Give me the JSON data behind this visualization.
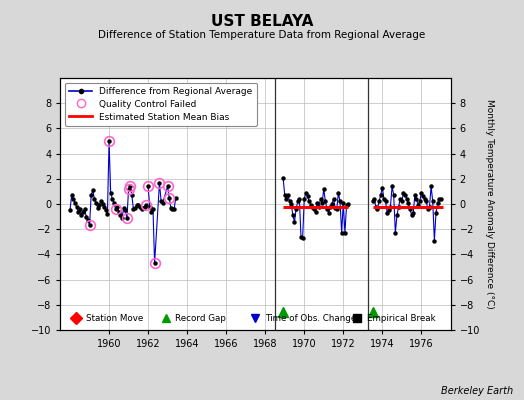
{
  "title": "UST BELAYA",
  "subtitle": "Difference of Station Temperature Data from Regional Average",
  "ylabel": "Monthly Temperature Anomaly Difference (°C)",
  "xlabel_credit": "Berkeley Earth",
  "ylim": [
    -10,
    10
  ],
  "xlim": [
    1957.5,
    1977.5
  ],
  "yticks": [
    -10,
    -8,
    -6,
    -4,
    -2,
    0,
    2,
    4,
    6,
    8
  ],
  "xticks": [
    1960,
    1962,
    1964,
    1966,
    1968,
    1970,
    1972,
    1974,
    1976
  ],
  "bg_color": "#d8d8d8",
  "plot_bg_color": "#ffffff",
  "grid_color": "#bbbbbb",
  "segments": [
    {
      "x_values": [
        1958.0,
        1958.083,
        1958.167,
        1958.25,
        1958.333,
        1958.417,
        1958.5,
        1958.583,
        1958.667,
        1958.75,
        1958.833,
        1958.917,
        1959.0,
        1959.083,
        1959.167,
        1959.25,
        1959.333,
        1959.417,
        1959.5,
        1959.583,
        1959.667,
        1959.75,
        1959.833,
        1959.917,
        1960.0,
        1960.083,
        1960.167,
        1960.25,
        1960.333,
        1960.417,
        1960.5,
        1960.583,
        1960.667,
        1960.75,
        1960.833,
        1960.917,
        1961.0,
        1961.083,
        1961.167,
        1961.25,
        1961.333,
        1961.417,
        1961.5,
        1961.583,
        1961.667,
        1961.75,
        1961.833,
        1961.917
      ],
      "y_values": [
        -0.5,
        0.7,
        0.4,
        0.1,
        -0.2,
        -0.6,
        -0.4,
        -0.9,
        -0.6,
        -0.4,
        -1.0,
        -1.3,
        -1.7,
        0.7,
        1.1,
        0.4,
        0.1,
        -0.3,
        -0.1,
        0.2,
        0.0,
        -0.2,
        -0.5,
        -0.8,
        5.0,
        0.9,
        0.4,
        0.1,
        -0.4,
        -0.2,
        -0.6,
        -0.9,
        -1.1,
        -0.3,
        -0.5,
        -1.1,
        1.2,
        1.4,
        0.7,
        -0.4,
        -0.3,
        -0.1,
        -0.1,
        -0.2,
        -0.4,
        -0.3,
        -0.2,
        -0.1
      ]
    },
    {
      "x_values": [
        1962.0,
        1962.083,
        1962.167,
        1962.25,
        1962.333,
        1962.583,
        1962.667,
        1962.75,
        1963.0,
        1963.083,
        1963.167,
        1963.25,
        1963.333,
        1963.417
      ],
      "y_values": [
        1.4,
        -0.2,
        -0.6,
        -0.4,
        -4.7,
        1.7,
        0.2,
        0.1,
        1.4,
        0.5,
        -0.3,
        -0.4,
        -0.4,
        0.5
      ]
    },
    {
      "x_values": [
        1968.917,
        1969.0,
        1969.083,
        1969.167,
        1969.25,
        1969.333,
        1969.417,
        1969.5,
        1969.583,
        1969.667,
        1969.75,
        1969.833,
        1969.917,
        1970.0,
        1970.083,
        1970.167,
        1970.25,
        1970.333,
        1970.417,
        1970.5,
        1970.583,
        1970.667,
        1970.75,
        1970.833,
        1970.917,
        1971.0,
        1971.083,
        1971.167,
        1971.25,
        1971.333,
        1971.417,
        1971.5,
        1971.583,
        1971.667,
        1971.75,
        1971.833,
        1971.917,
        1972.0,
        1972.083,
        1972.167,
        1972.25
      ],
      "y_values": [
        2.1,
        0.7,
        0.4,
        0.7,
        0.2,
        0.0,
        -0.9,
        -1.4,
        -0.4,
        0.2,
        0.4,
        -2.6,
        -2.7,
        0.4,
        0.9,
        0.6,
        0.2,
        -0.1,
        -0.2,
        -0.4,
        -0.6,
        0.1,
        -0.2,
        0.4,
        0.1,
        1.2,
        0.2,
        -0.4,
        -0.7,
        -0.2,
        0.0,
        0.4,
        -0.3,
        -0.4,
        0.9,
        0.2,
        -2.3,
        0.1,
        -2.3,
        -0.1,
        0.0
      ]
    },
    {
      "x_values": [
        1973.5,
        1973.583,
        1973.667,
        1973.75,
        1973.833,
        1973.917,
        1974.0,
        1974.083,
        1974.167,
        1974.25,
        1974.333,
        1974.417,
        1974.5,
        1974.583,
        1974.667,
        1974.75,
        1974.833,
        1974.917,
        1975.0,
        1975.083,
        1975.167,
        1975.25,
        1975.333,
        1975.417,
        1975.5,
        1975.583,
        1975.667,
        1975.75,
        1975.833,
        1975.917,
        1976.0,
        1976.083,
        1976.167,
        1976.25,
        1976.333,
        1976.417,
        1976.5,
        1976.583,
        1976.667,
        1976.75,
        1976.833,
        1976.917,
        1977.0
      ],
      "y_values": [
        0.2,
        0.4,
        -0.2,
        -0.4,
        0.2,
        0.7,
        1.3,
        0.4,
        0.2,
        -0.7,
        -0.5,
        -0.2,
        1.4,
        0.7,
        -2.3,
        -0.9,
        -0.2,
        0.4,
        0.2,
        0.9,
        0.7,
        0.4,
        0.1,
        -0.4,
        -0.9,
        -0.7,
        0.7,
        0.4,
        -0.1,
        0.2,
        0.9,
        0.6,
        0.4,
        0.2,
        -0.4,
        -0.2,
        1.4,
        0.2,
        -2.9,
        -0.7,
        0.1,
        0.4,
        0.4
      ]
    }
  ],
  "qc_failed": [
    [
      1960.0,
      5.0
    ],
    [
      1959.0,
      -1.7
    ],
    [
      1960.333,
      -0.4
    ],
    [
      1960.917,
      -1.1
    ],
    [
      1961.0,
      1.2
    ],
    [
      1961.083,
      1.4
    ],
    [
      1961.917,
      -0.1
    ],
    [
      1962.0,
      1.4
    ],
    [
      1962.333,
      -4.7
    ],
    [
      1962.583,
      1.7
    ],
    [
      1963.0,
      1.4
    ],
    [
      1963.083,
      0.5
    ]
  ],
  "bias_segments": [
    {
      "x_start": 1968.917,
      "x_end": 1972.25,
      "bias": -0.25
    },
    {
      "x_start": 1973.5,
      "x_end": 1977.1,
      "bias": -0.25
    }
  ],
  "record_gaps": [
    1968.917,
    1973.5
  ],
  "vertical_lines": [
    1968.5,
    1973.25
  ],
  "line_color": "#0000cc",
  "dot_color": "#000000",
  "qc_color": "#ff66cc",
  "bias_color": "#ff0000",
  "gap_color": "#009900",
  "vline_color": "#333333"
}
